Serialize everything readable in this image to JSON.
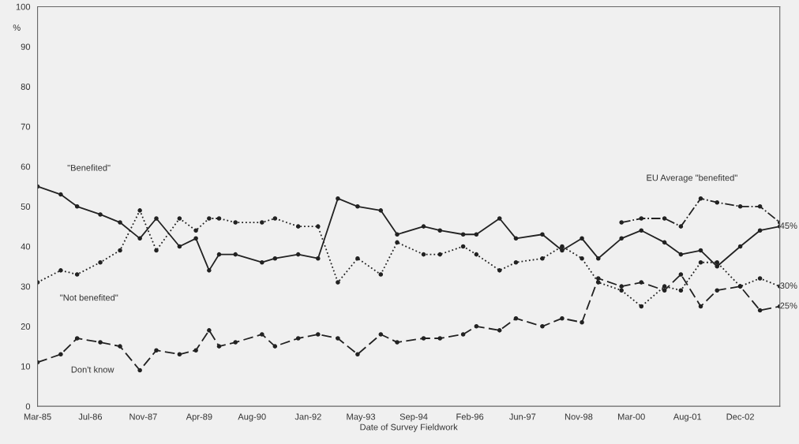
{
  "chart_data": {
    "type": "line",
    "xlabel": "Date of Survey Fieldwork",
    "ylabel": "%",
    "x": [
      "1985-03",
      "1985-10",
      "1986-03",
      "1986-10",
      "1987-04",
      "1987-10",
      "1988-03",
      "1988-10",
      "1989-03",
      "1989-07",
      "1989-10",
      "1990-03",
      "1990-11",
      "1991-03",
      "1991-10",
      "1992-04",
      "1992-10",
      "1993-04",
      "1993-11",
      "1994-04",
      "1994-12",
      "1995-05",
      "1995-12",
      "1996-04",
      "1996-11",
      "1997-04",
      "1997-12",
      "1998-06",
      "1998-12",
      "1999-05",
      "1999-12",
      "2000-06",
      "2001-01",
      "2001-06",
      "2001-12",
      "2002-05",
      "2002-12",
      "2003-06",
      "2003-12"
    ],
    "series": [
      {
        "name": "\"Benefited\"",
        "color": "#222222",
        "line_style": "solid",
        "values": [
          55,
          53,
          50,
          48,
          46,
          42,
          47,
          40,
          42,
          34,
          38,
          38,
          36,
          37,
          38,
          37,
          52,
          50,
          49,
          43,
          45,
          44,
          43,
          43,
          47,
          42,
          43,
          39,
          42,
          37,
          42,
          44,
          41,
          38,
          39,
          35,
          40,
          44,
          45
        ]
      },
      {
        "name": "\"Not benefited\"",
        "color": "#222222",
        "line_style": "dotted",
        "values": [
          31,
          34,
          33,
          36,
          39,
          49,
          39,
          47,
          44,
          47,
          47,
          46,
          46,
          47,
          45,
          45,
          31,
          37,
          33,
          41,
          38,
          38,
          40,
          38,
          34,
          36,
          37,
          40,
          37,
          31,
          29,
          25,
          30,
          29,
          36,
          36,
          30,
          32,
          30
        ]
      },
      {
        "name": "Don't know",
        "color": "#222222",
        "line_style": "dashed",
        "values": [
          11,
          13,
          17,
          16,
          15,
          9,
          14,
          13,
          14,
          19,
          15,
          16,
          18,
          15,
          17,
          18,
          17,
          13,
          18,
          16,
          17,
          17,
          18,
          20,
          19,
          22,
          20,
          22,
          21,
          32,
          30,
          31,
          29,
          33,
          25,
          29,
          30,
          24,
          25
        ]
      },
      {
        "name": "EU Average \"benefited\"",
        "color": "#222222",
        "line_style": "dashdot",
        "x": [
          "1999-12",
          "2000-06",
          "2001-01",
          "2001-06",
          "2001-12",
          "2002-05",
          "2002-12",
          "2003-06",
          "2003-12"
        ],
        "values": [
          46,
          47,
          47,
          45,
          52,
          51,
          50,
          50,
          46
        ]
      }
    ],
    "marker": "circle",
    "xlim": [
      "1985-03",
      "2003-12"
    ],
    "xticks": [
      {
        "value": "1985-03",
        "label": "Mar-85"
      },
      {
        "value": "1986-07",
        "label": "Jul-86"
      },
      {
        "value": "1987-11",
        "label": "Nov-87"
      },
      {
        "value": "1989-04",
        "label": "Apr-89"
      },
      {
        "value": "1990-08",
        "label": "Aug-90"
      },
      {
        "value": "1992-01",
        "label": "Jan-92"
      },
      {
        "value": "1993-05",
        "label": "May-93"
      },
      {
        "value": "1994-09",
        "label": "Sep-94"
      },
      {
        "value": "1996-02",
        "label": "Feb-96"
      },
      {
        "value": "1997-06",
        "label": "Jun-97"
      },
      {
        "value": "1998-11",
        "label": "Nov-98"
      },
      {
        "value": "2000-03",
        "label": "Mar-00"
      },
      {
        "value": "2001-08",
        "label": "Aug-01"
      },
      {
        "value": "2002-12",
        "label": "Dec-02"
      }
    ],
    "ylim": [
      0,
      100
    ],
    "yticks": [
      0,
      10,
      20,
      30,
      40,
      50,
      60,
      70,
      80,
      90,
      100
    ],
    "annotations": [
      {
        "text": "45%",
        "x": "2003-12",
        "y": 45
      },
      {
        "text": "30%",
        "x": "2003-12",
        "y": 30
      },
      {
        "text": "25%",
        "x": "2003-12",
        "y": 25
      }
    ]
  }
}
